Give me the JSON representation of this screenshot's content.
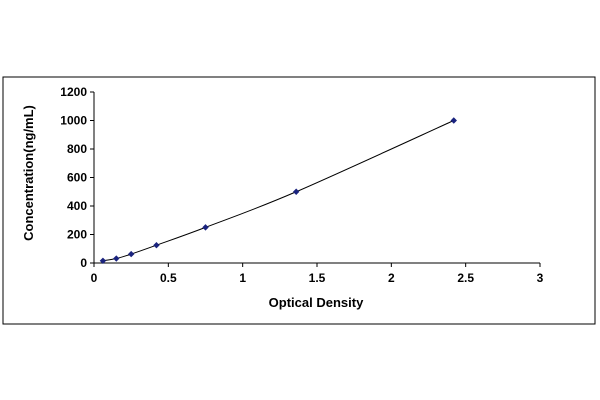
{
  "chart_data": {
    "type": "scatter",
    "xlabel": "Optical Density",
    "ylabel": "Concentration(ng/mL)",
    "xlim": [
      0,
      3
    ],
    "ylim": [
      0,
      1200
    ],
    "x_ticks": [
      0,
      0.5,
      1,
      1.5,
      2,
      2.5,
      3
    ],
    "y_ticks": [
      0,
      200,
      400,
      600,
      800,
      1000,
      1200
    ],
    "x_tick_labels": [
      "0",
      "0.5",
      "1",
      "1.5",
      "2",
      "2.5",
      "3"
    ],
    "y_tick_labels": [
      "0",
      "200",
      "400",
      "600",
      "800",
      "1000",
      "1200"
    ],
    "grid": false,
    "legend": "none",
    "series": [
      {
        "points": [
          {
            "x": 0.06,
            "y": 15.6
          },
          {
            "x": 0.15,
            "y": 31.25
          },
          {
            "x": 0.25,
            "y": 62.5
          },
          {
            "x": 0.42,
            "y": 125
          },
          {
            "x": 0.75,
            "y": 250
          },
          {
            "x": 1.36,
            "y": 500
          },
          {
            "x": 2.42,
            "y": 1000
          }
        ],
        "marker": "diamond",
        "marker_color": "#1a237e",
        "line": "smooth-fit",
        "line_color": "#000000"
      }
    ]
  }
}
